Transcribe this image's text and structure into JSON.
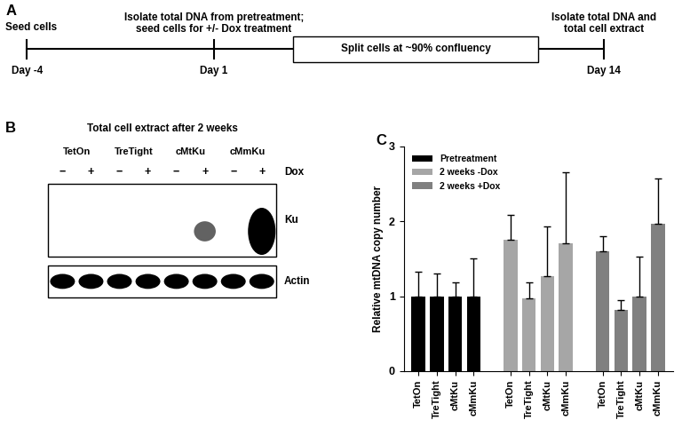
{
  "timeline": {
    "label": "A",
    "events": [
      {
        "day": "Day -4",
        "text": "Seed cells"
      },
      {
        "day": "Day 1",
        "text": "Isolate total DNA from pretreatment;\nseed cells for +/- Dox treatment"
      },
      {
        "day": "Day 14",
        "text": "Isolate total DNA and\ntotal cell extract"
      }
    ],
    "box": "Split cells at ~90% confluency"
  },
  "blot": {
    "label": "B",
    "title": "Total cell extract after 2 weeks",
    "groups": [
      "TetOn",
      "TreTight",
      "cMtKu",
      "cMmKu"
    ],
    "lanes": [
      "−",
      "+"
    ],
    "lane_label": "Dox",
    "rows": [
      {
        "name": "Ku",
        "bands": [
          0,
          0,
          0,
          0,
          0,
          0.3,
          0,
          1
        ]
      },
      {
        "name": "Actin",
        "bands": [
          1,
          1,
          1,
          1,
          1,
          1,
          1,
          1
        ]
      }
    ]
  },
  "chart_data": {
    "type": "bar",
    "label": "C",
    "categories": [
      "TetOn",
      "TreTight",
      "cMtKu",
      "cMmKu"
    ],
    "series": [
      {
        "name": "Pretreatment",
        "color": "#000000",
        "values": [
          1,
          1,
          1,
          1
        ],
        "errors": [
          0.33,
          0.3,
          0.18,
          0.5
        ]
      },
      {
        "name": "2 weeks -Dox",
        "color": "#a6a6a6",
        "values": [
          1.75,
          0.97,
          1.27,
          1.71
        ],
        "errors": [
          0.33,
          0.21,
          0.66,
          0.94
        ]
      },
      {
        "name": "2 weeks +Dox",
        "color": "#808080",
        "values": [
          1.6,
          0.82,
          1.0,
          1.97
        ],
        "errors": [
          0.2,
          0.13,
          0.53,
          0.6
        ]
      }
    ],
    "y_label": "Relative mtDNA copy number",
    "ylim": [
      0,
      3
    ],
    "yticks": [
      0,
      1,
      2,
      3
    ],
    "legend": "upper left"
  }
}
